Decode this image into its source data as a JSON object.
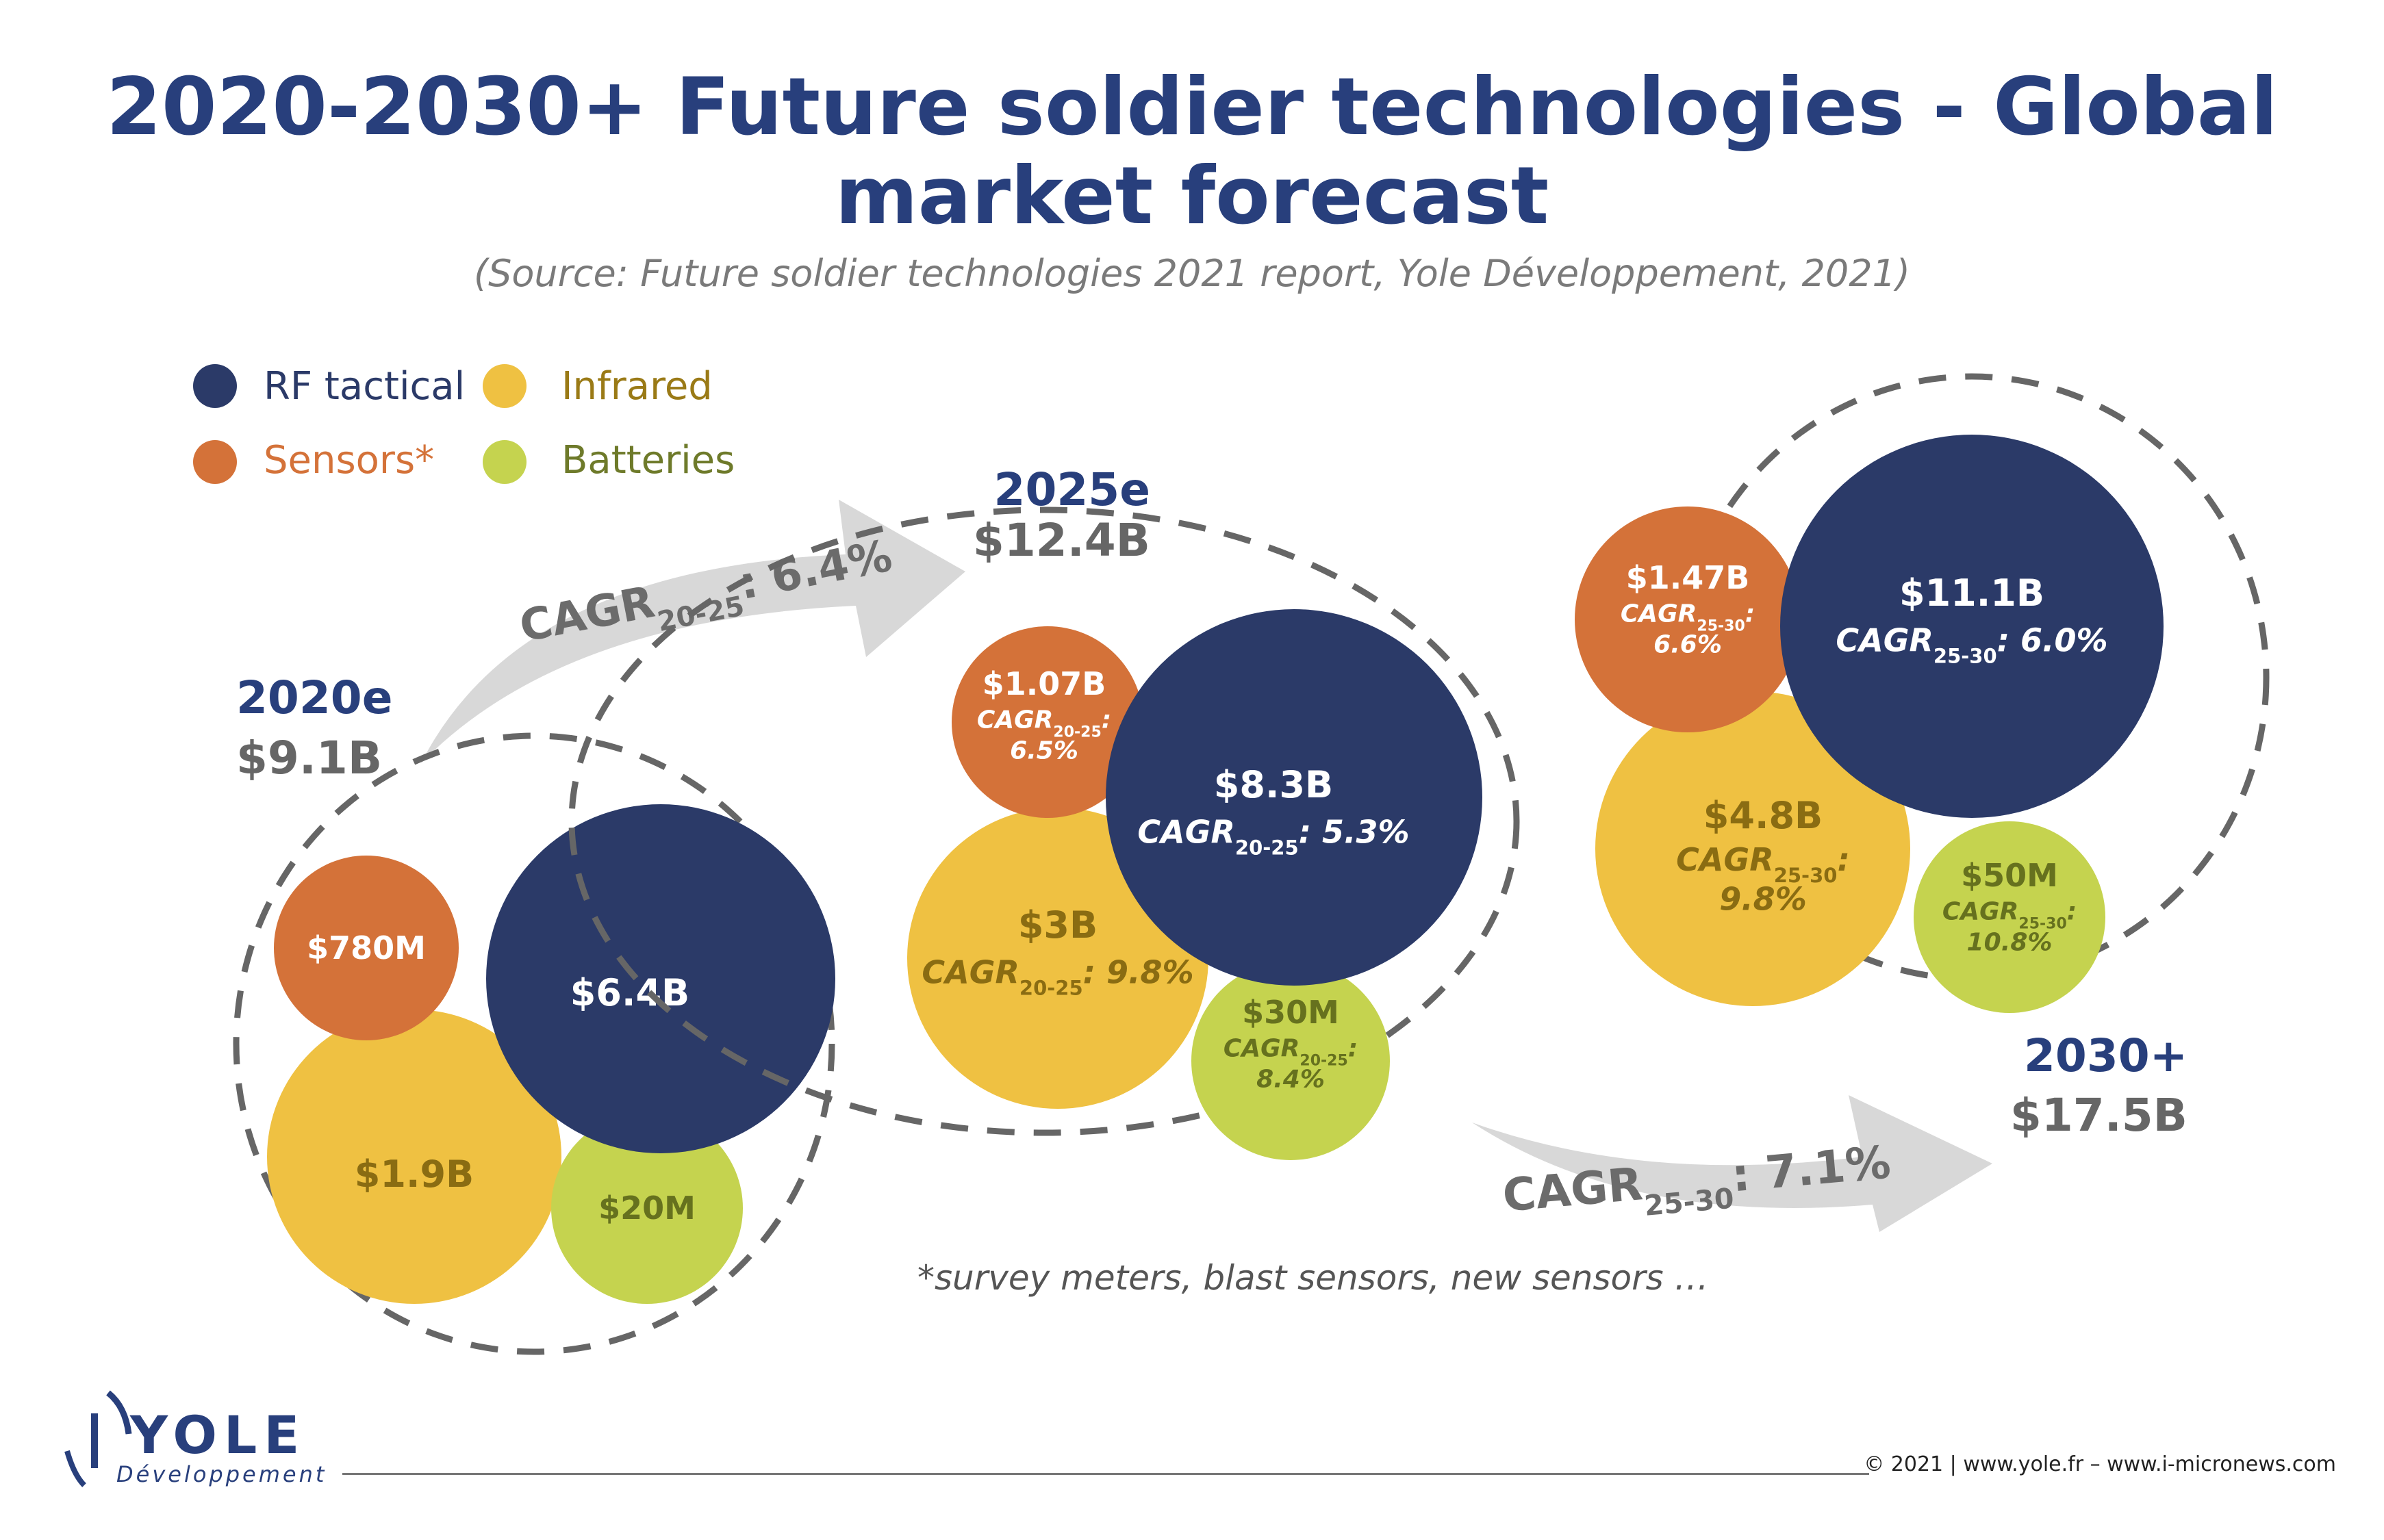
{
  "title_line1": "2020-2030+ Future soldier technologies - Global",
  "title_line2": "market forecast",
  "subtitle": "(Source: Future soldier technologies 2021 report, Yole Développement, 2021)",
  "colors": {
    "navy": "#2b3a68",
    "orange": "#d47239",
    "yellow": "#efc142",
    "lime": "#c5d34f",
    "gray_text": "#666666",
    "arrow_gray": "#d8d8d8"
  },
  "legend": [
    {
      "label": "RF tactical",
      "color": "#2b3a68",
      "text_color": "#2b3a68"
    },
    {
      "label": "Infrared",
      "color": "#efc142",
      "text_color": "#9a7a16"
    },
    {
      "label": "Sensors*",
      "color": "#d47239",
      "text_color": "#d47239"
    },
    {
      "label": "Batteries",
      "color": "#c5d34f",
      "text_color": "#6e7a2a"
    }
  ],
  "chart_data": {
    "type": "bubble",
    "title": "2020-2030+ Future soldier technologies - Global market forecast",
    "periods": [
      {
        "year": "2020e",
        "total": "$9.1B",
        "total_value_B": 9.1,
        "segments": [
          {
            "name": "RF tactical",
            "value": "$6.4B",
            "value_B": 6.4,
            "cagr": ""
          },
          {
            "name": "Sensors*",
            "value": "$780M",
            "value_B": 0.78,
            "cagr": ""
          },
          {
            "name": "Infrared",
            "value": "$1.9B",
            "value_B": 1.9,
            "cagr": ""
          },
          {
            "name": "Batteries",
            "value": "$20M",
            "value_B": 0.02,
            "cagr": ""
          }
        ]
      },
      {
        "year": "2025e",
        "total": "$12.4B",
        "total_value_B": 12.4,
        "segments": [
          {
            "name": "RF tactical",
            "value": "$8.3B",
            "value_B": 8.3,
            "cagr": "5.3%",
            "cagr_sub": "20-25"
          },
          {
            "name": "Sensors*",
            "value": "$1.07B",
            "value_B": 1.07,
            "cagr": "6.5%",
            "cagr_sub": "20-25"
          },
          {
            "name": "Infrared",
            "value": "$3B",
            "value_B": 3.0,
            "cagr": "9.8%",
            "cagr_sub": "20-25"
          },
          {
            "name": "Batteries",
            "value": "$30M",
            "value_B": 0.03,
            "cagr": "8.4%",
            "cagr_sub": "20-25"
          }
        ]
      },
      {
        "year": "2030+",
        "total": "$17.5B",
        "total_value_B": 17.5,
        "segments": [
          {
            "name": "RF tactical",
            "value": "$11.1B",
            "value_B": 11.1,
            "cagr": "6.0%",
            "cagr_sub": "25-30"
          },
          {
            "name": "Sensors*",
            "value": "$1.47B",
            "value_B": 1.47,
            "cagr": "6.6%",
            "cagr_sub": "25-30"
          },
          {
            "name": "Infrared",
            "value": "$4.8B",
            "value_B": 4.8,
            "cagr": "9.8%",
            "cagr_sub": "25-30"
          },
          {
            "name": "Batteries",
            "value": "$50M",
            "value_B": 0.05,
            "cagr": "10.8%",
            "cagr_sub": "25-30"
          }
        ]
      }
    ],
    "transitions": [
      {
        "from": "2020e",
        "to": "2025e",
        "label": "CAGR",
        "sub": "20-25",
        "value": ": 6.4%"
      },
      {
        "from": "2025e",
        "to": "2030+",
        "label": "CAGR",
        "sub": "25-30",
        "value": ": 7.1%"
      }
    ]
  },
  "cagr_word": "CAGR",
  "footnote": "*survey meters, blast sensors, new sensors …",
  "logo": {
    "word": "YOLE",
    "sub": "Développement"
  },
  "credits": "© 2021 | www.yole.fr – www.i-micronews.com"
}
